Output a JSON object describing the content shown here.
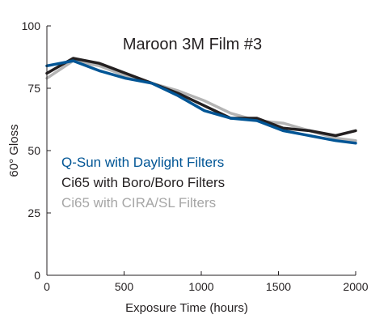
{
  "chart_data": {
    "type": "line",
    "title": "Maroon 3M Film #3",
    "xlabel": "Exposure Time (hours)",
    "ylabel": "60° Gloss",
    "xlim": [
      0,
      2000
    ],
    "ylim": [
      0,
      100
    ],
    "x_ticks": [
      0,
      500,
      1000,
      1500,
      2000
    ],
    "y_ticks": [
      0,
      25,
      50,
      75,
      100
    ],
    "grid": false,
    "legend_position": "left",
    "series": [
      {
        "name": "Ci65 with CIRA/SL Filters",
        "color": "#b4b4b4",
        "points": [
          {
            "x": 0,
            "y": 79
          },
          {
            "x": 170,
            "y": 86
          },
          {
            "x": 340,
            "y": 84
          },
          {
            "x": 510,
            "y": 80
          },
          {
            "x": 680,
            "y": 77
          },
          {
            "x": 850,
            "y": 74
          },
          {
            "x": 1020,
            "y": 70
          },
          {
            "x": 1190,
            "y": 65
          },
          {
            "x": 1360,
            "y": 62
          },
          {
            "x": 1530,
            "y": 61
          },
          {
            "x": 1700,
            "y": 58
          },
          {
            "x": 1870,
            "y": 55
          },
          {
            "x": 2000,
            "y": 54
          }
        ]
      },
      {
        "name": "Ci65 with Boro/Boro Filters",
        "color": "#231f20",
        "points": [
          {
            "x": 0,
            "y": 81
          },
          {
            "x": 170,
            "y": 87
          },
          {
            "x": 340,
            "y": 85
          },
          {
            "x": 510,
            "y": 81
          },
          {
            "x": 680,
            "y": 77
          },
          {
            "x": 850,
            "y": 73
          },
          {
            "x": 1020,
            "y": 68
          },
          {
            "x": 1190,
            "y": 63
          },
          {
            "x": 1360,
            "y": 63
          },
          {
            "x": 1530,
            "y": 59
          },
          {
            "x": 1700,
            "y": 58
          },
          {
            "x": 1870,
            "y": 56
          },
          {
            "x": 2000,
            "y": 58
          }
        ]
      },
      {
        "name": "Q-Sun with Daylight Filters",
        "color": "#005595",
        "points": [
          {
            "x": 0,
            "y": 84
          },
          {
            "x": 170,
            "y": 86
          },
          {
            "x": 340,
            "y": 82
          },
          {
            "x": 510,
            "y": 79
          },
          {
            "x": 680,
            "y": 77
          },
          {
            "x": 850,
            "y": 72
          },
          {
            "x": 1020,
            "y": 66
          },
          {
            "x": 1190,
            "y": 63
          },
          {
            "x": 1360,
            "y": 62
          },
          {
            "x": 1530,
            "y": 58
          },
          {
            "x": 1700,
            "y": 56
          },
          {
            "x": 1870,
            "y": 54
          },
          {
            "x": 2000,
            "y": 53
          }
        ]
      }
    ],
    "legend": [
      {
        "label": "Q-Sun with Daylight Filters",
        "color": "#005595"
      },
      {
        "label": "Ci65 with Boro/Boro Filters",
        "color": "#231f20"
      },
      {
        "label": "Ci65 with CIRA/SL Filters",
        "color": "#a6a6a6"
      }
    ]
  }
}
